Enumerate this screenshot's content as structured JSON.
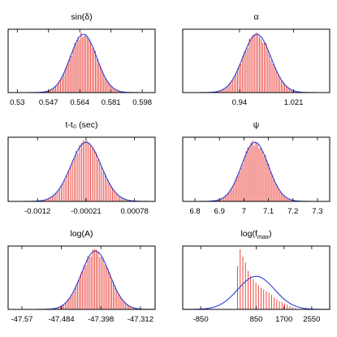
{
  "colors": {
    "histogram": "#e8332b",
    "fit_curve": "#2a3fd6",
    "axis": "#000000"
  },
  "chart_data": [
    {
      "type": "bar",
      "title": "sin(δ)",
      "xlim": [
        0.525,
        0.605
      ],
      "xticks": [
        0.53,
        0.547,
        0.564,
        0.581,
        0.598
      ],
      "xticklabels": [
        "0.53",
        "0.547",
        "0.564",
        "0.581",
        "0.598"
      ],
      "gaussian": {
        "mean": 0.566,
        "sigma": 0.0072
      },
      "grid": false,
      "legend": "none"
    },
    {
      "type": "bar",
      "title": "α",
      "xlim": [
        0.855,
        1.075
      ],
      "xticks": [
        0.94,
        1.021
      ],
      "xticklabels": [
        "0.94",
        "1.021"
      ],
      "gaussian": {
        "mean": 0.966,
        "sigma": 0.021
      },
      "grid": false,
      "legend": "none"
    },
    {
      "type": "bar",
      "title": "t-t₀ (sec)",
      "xlim": [
        -0.0018,
        0.0012
      ],
      "xticks": [
        -0.0012,
        -0.00021,
        0.00078
      ],
      "xticklabels": [
        "-0.0012",
        "-0.00021",
        "0.00078"
      ],
      "gaussian": {
        "mean": -0.00021,
        "sigma": 0.00031
      },
      "grid": false,
      "legend": "none"
    },
    {
      "type": "bar",
      "title": "ψ",
      "xlim": [
        6.75,
        7.35
      ],
      "xticks": [
        6.8,
        6.9,
        7,
        7.1,
        7.2,
        7.3
      ],
      "xticklabels": [
        "6.8",
        "6.9",
        "7",
        "7.1",
        "7.2",
        "7.3"
      ],
      "gaussian": {
        "mean": 7.045,
        "sigma": 0.055
      },
      "grid": false,
      "legend": "none"
    },
    {
      "type": "bar",
      "title": "log(A)",
      "xlim": [
        -47.6,
        -47.28
      ],
      "xticks": [
        -47.57,
        -47.484,
        -47.398,
        -47.312
      ],
      "xticklabels": [
        "-47.57",
        "-47.484",
        "-47.398",
        "-47.312"
      ],
      "gaussian": {
        "mean": -47.41,
        "sigma": 0.031
      },
      "grid": false,
      "legend": "none"
    },
    {
      "type": "bar",
      "title": "log(f",
      "title_subscript": "max",
      "title_suffix": ")",
      "xlim": [
        -1400,
        3100
      ],
      "xticks": [
        -850,
        850,
        1700,
        2550
      ],
      "xticklabels": [
        "-850",
        "850",
        "1700",
        "2550"
      ],
      "gaussian": {
        "mean": 850,
        "sigma": 560,
        "peak_fraction": 0.55
      },
      "histogram": {
        "bin_width": 80,
        "bin_starts": [
          240,
          320,
          400,
          480,
          560,
          640,
          720,
          800,
          880,
          960,
          1040,
          1120,
          1200,
          1280,
          1360,
          1440,
          1520,
          1600,
          1680,
          1760,
          1840,
          1920,
          2000
        ],
        "heights": [
          0.72,
          1.0,
          0.88,
          0.78,
          0.64,
          0.56,
          0.5,
          0.44,
          0.4,
          0.36,
          0.33,
          0.3,
          0.28,
          0.24,
          0.2,
          0.17,
          0.14,
          0.12,
          0.1,
          0.08,
          0.06,
          0.04,
          0.02
        ]
      },
      "grid": false,
      "legend": "none"
    }
  ]
}
